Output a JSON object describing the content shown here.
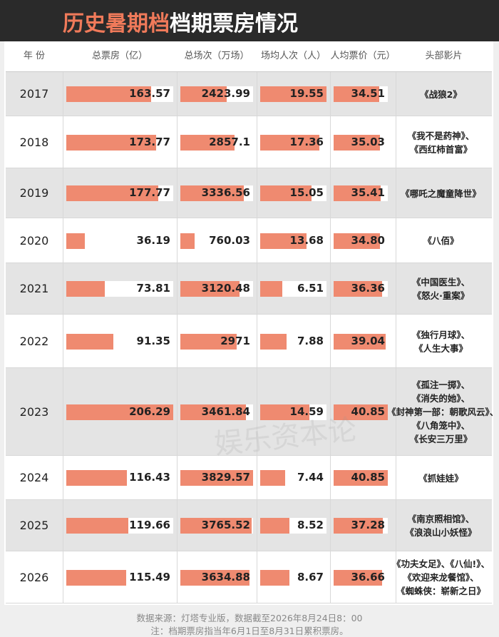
{
  "header": {
    "title_highlight": "历史暑期档",
    "title_rest": "档期票房情况"
  },
  "table": {
    "columns": [
      "年 份",
      "总票房（亿）",
      "总场次（万场）",
      "场均人次（人）",
      "人均票价（元）",
      "头部影片"
    ],
    "rows": [
      [
        "2017",
        "163.57",
        "2423.99",
        "19.55",
        "34.51",
        [
          "《战狼2》"
        ]
      ],
      [
        "2018",
        "173.77",
        "2857.1",
        "17.36",
        "35.03",
        [
          "《我不是药神》、",
          "《西红柿首富》"
        ]
      ],
      [
        "2019",
        "177.77",
        "3336.56",
        "15.05",
        "35.41",
        [
          "《哪吒之魔童降世》"
        ]
      ],
      [
        "2020",
        "36.19",
        "760.03",
        "13.68",
        "34.80",
        [
          "《八佰》"
        ]
      ],
      [
        "2021",
        "73.81",
        "3120.48",
        "6.51",
        "36.36",
        [
          "《中国医生》、",
          "《怒火·重案》"
        ]
      ],
      [
        "2022",
        "91.35",
        "2971",
        "7.88",
        "39.04",
        [
          "《独行月球》、",
          "《人生大事》"
        ]
      ],
      [
        "2023",
        "206.29",
        "3461.84",
        "14.59",
        "40.85",
        [
          "《孤注一掷》、",
          "《消失的她》、",
          "《封神第一部：朝歌风云》、",
          "《八角笼中》、",
          "《长安三万里》"
        ]
      ],
      [
        "2024",
        "116.43",
        "3829.57",
        "7.44",
        "40.85",
        [
          "《抓娃娃》"
        ]
      ],
      [
        "2025",
        "119.66",
        "3765.52",
        "8.52",
        "37.28",
        [
          "《南京照相馆》、",
          "《浪浪山小妖怪》"
        ]
      ],
      [
        "2026",
        "115.49",
        "3634.88",
        "8.67",
        "36.66",
        [
          "《功夫女足》、《八仙!》、",
          "《欢迎来龙餐馆》、",
          "《蜘蛛侠：崭新之日》"
        ]
      ]
    ]
  },
  "watermark": "娱乐资本论",
  "footer": [
    "数据来源：灯塔专业版，数据截至2026年8月24日8：00",
    "注：档期票房指当年6月1日至8月31日累积票房。"
  ]
}
